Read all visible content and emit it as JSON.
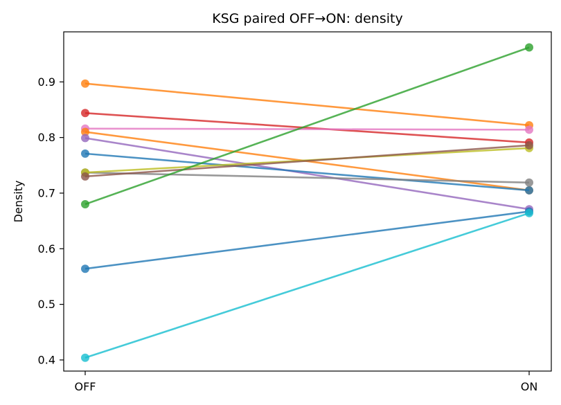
{
  "chart_data": {
    "type": "line",
    "title": "KSG paired OFF→ON: density",
    "xlabel": "",
    "ylabel": "Density",
    "categories": [
      "OFF",
      "ON"
    ],
    "ylim": [
      0.38,
      0.99
    ],
    "yticks": [
      "0.4",
      "0.5",
      "0.6",
      "0.7",
      "0.8",
      "0.9"
    ],
    "grid": false,
    "legend": "none",
    "series": [
      {
        "color": "#ff7f0e",
        "values": [
          0.897,
          0.822
        ]
      },
      {
        "color": "#d62728",
        "values": [
          0.844,
          0.791
        ]
      },
      {
        "color": "#e377c2",
        "values": [
          0.816,
          0.814
        ]
      },
      {
        "color": "#ff7f0e",
        "values": [
          0.81,
          0.705
        ]
      },
      {
        "color": "#9467bd",
        "values": [
          0.799,
          0.671
        ]
      },
      {
        "color": "#1f77b4",
        "values": [
          0.771,
          0.705
        ]
      },
      {
        "color": "#7f7f7f",
        "values": [
          0.737,
          0.719
        ]
      },
      {
        "color": "#bcbd22",
        "values": [
          0.737,
          0.781
        ]
      },
      {
        "color": "#8c564b",
        "values": [
          0.73,
          0.786
        ]
      },
      {
        "color": "#2ca02c",
        "values": [
          0.68,
          0.962
        ]
      },
      {
        "color": "#1f77b4",
        "values": [
          0.564,
          0.667
        ]
      },
      {
        "color": "#17becf",
        "values": [
          0.404,
          0.664
        ]
      }
    ]
  }
}
